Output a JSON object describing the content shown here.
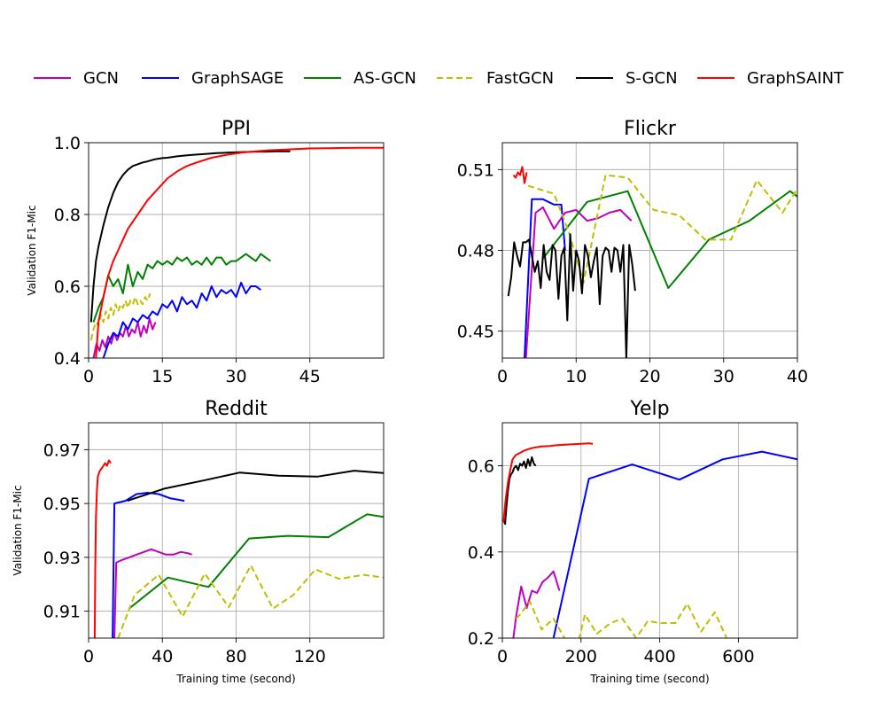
{
  "legend": {
    "placement": "top",
    "entries": [
      {
        "name": "GCN",
        "color": "#bf00bf",
        "dash": false
      },
      {
        "name": "GraphSAGE",
        "color": "#0000ff",
        "dash": false
      },
      {
        "name": "AS-GCN",
        "color": "#008000",
        "dash": false
      },
      {
        "name": "FastGCN",
        "color": "#bfbf00",
        "dash": true
      },
      {
        "name": "S-GCN",
        "color": "#000000",
        "dash": false
      },
      {
        "name": "GraphSAINT",
        "color": "#ff0000",
        "dash": false
      }
    ]
  },
  "chart_data": [
    {
      "type": "line",
      "title": "PPI",
      "xlabel": "",
      "ylabel": "Validation F1-Mic",
      "xlim": [
        0,
        60
      ],
      "ylim": [
        0.4,
        1.0
      ],
      "xticks": [
        0,
        15,
        30,
        45
      ],
      "yticks": [
        0.4,
        0.6,
        0.8,
        1.0
      ],
      "ytick_labels": [
        "0.4",
        "0.6",
        "0.8",
        "1.0"
      ],
      "grid": true,
      "series": [
        {
          "name": "GCN",
          "x": [
            1,
            1.6,
            2.2,
            2.8,
            3.4,
            4,
            4.6,
            5.2,
            5.8,
            6.4,
            7,
            7.6,
            8.2,
            8.8,
            9.4,
            10,
            10.6,
            11.2,
            11.8,
            12.4,
            13,
            13.6
          ],
          "y": [
            0.4,
            0.44,
            0.42,
            0.45,
            0.43,
            0.46,
            0.44,
            0.47,
            0.45,
            0.47,
            0.46,
            0.49,
            0.46,
            0.48,
            0.47,
            0.5,
            0.46,
            0.49,
            0.47,
            0.51,
            0.48,
            0.5
          ]
        },
        {
          "name": "GraphSAGE",
          "x": [
            3,
            3.5,
            4,
            5,
            6,
            7,
            8,
            9,
            10,
            11,
            12,
            13,
            14,
            15,
            16,
            17,
            18,
            19,
            20,
            21,
            22,
            23,
            24,
            25,
            26,
            27,
            28,
            29,
            30,
            31,
            32,
            33,
            34,
            35
          ],
          "y": [
            0.4,
            0.42,
            0.44,
            0.47,
            0.46,
            0.5,
            0.48,
            0.51,
            0.5,
            0.52,
            0.51,
            0.53,
            0.52,
            0.55,
            0.54,
            0.56,
            0.53,
            0.57,
            0.55,
            0.56,
            0.54,
            0.58,
            0.56,
            0.6,
            0.57,
            0.59,
            0.58,
            0.59,
            0.57,
            0.61,
            0.58,
            0.6,
            0.6,
            0.59
          ]
        },
        {
          "name": "AS-GCN",
          "x": [
            1,
            2,
            3,
            4,
            5,
            6,
            7,
            8,
            9,
            10,
            11,
            12,
            13,
            14,
            15,
            16,
            17,
            18,
            19,
            20,
            21,
            22,
            23,
            24,
            25,
            26,
            27,
            28,
            29,
            30,
            31,
            32,
            33,
            34,
            35,
            36,
            37
          ],
          "y": [
            0.5,
            0.54,
            0.57,
            0.63,
            0.6,
            0.62,
            0.58,
            0.66,
            0.6,
            0.64,
            0.62,
            0.66,
            0.65,
            0.67,
            0.66,
            0.67,
            0.66,
            0.68,
            0.67,
            0.68,
            0.66,
            0.67,
            0.66,
            0.68,
            0.66,
            0.68,
            0.68,
            0.66,
            0.67,
            0.67,
            0.68,
            0.69,
            0.68,
            0.67,
            0.69,
            0.68,
            0.67
          ]
        },
        {
          "name": "FastGCN",
          "x": [
            0.5,
            1,
            1.5,
            2,
            2.5,
            3,
            3.5,
            4,
            4.5,
            5,
            5.5,
            6,
            6.5,
            7,
            7.5,
            8,
            8.5,
            9,
            9.5,
            10,
            10.5,
            11,
            11.5,
            12,
            12.5
          ],
          "y": [
            0.45,
            0.48,
            0.5,
            0.49,
            0.52,
            0.5,
            0.53,
            0.51,
            0.54,
            0.52,
            0.55,
            0.53,
            0.55,
            0.54,
            0.56,
            0.54,
            0.56,
            0.55,
            0.57,
            0.55,
            0.56,
            0.55,
            0.57,
            0.56,
            0.58
          ]
        },
        {
          "name": "S-GCN",
          "x": [
            0.5,
            1,
            1.5,
            2,
            2.5,
            3,
            4,
            5,
            6,
            7,
            8,
            9,
            10,
            11,
            12,
            13,
            14,
            15,
            16,
            18,
            20,
            22,
            24,
            26,
            28,
            30,
            32,
            34,
            36,
            38,
            40,
            41
          ],
          "y": [
            0.5,
            0.6,
            0.67,
            0.71,
            0.74,
            0.77,
            0.82,
            0.86,
            0.89,
            0.91,
            0.925,
            0.935,
            0.94,
            0.945,
            0.948,
            0.952,
            0.955,
            0.957,
            0.958,
            0.962,
            0.965,
            0.967,
            0.969,
            0.971,
            0.972,
            0.973,
            0.974,
            0.975,
            0.975,
            0.976,
            0.976,
            0.976
          ]
        },
        {
          "name": "GraphSAINT",
          "x": [
            1.5,
            2,
            3,
            4,
            5,
            6,
            7,
            8,
            9,
            10,
            12,
            14,
            16,
            18,
            20,
            22,
            25,
            28,
            31,
            34,
            37,
            40,
            45,
            50,
            55,
            60
          ],
          "y": [
            0.4,
            0.5,
            0.57,
            0.63,
            0.67,
            0.7,
            0.73,
            0.76,
            0.78,
            0.8,
            0.84,
            0.87,
            0.9,
            0.92,
            0.935,
            0.945,
            0.958,
            0.966,
            0.972,
            0.976,
            0.979,
            0.981,
            0.984,
            0.985,
            0.986,
            0.986
          ]
        }
      ]
    },
    {
      "type": "line",
      "title": "Flickr",
      "xlabel": "",
      "ylabel": "",
      "xlim": [
        0,
        40
      ],
      "ylim": [
        0.44,
        0.52
      ],
      "xticks": [
        0,
        10,
        20,
        30,
        40
      ],
      "yticks": [
        0.45,
        0.48,
        0.51
      ],
      "ytick_labels": [
        "0.45",
        "0.48",
        "0.51"
      ],
      "grid": true,
      "series": [
        {
          "name": "GCN",
          "x": [
            3.2,
            4.5,
            5.5,
            7,
            8.5,
            10,
            11.5,
            13,
            14.5,
            16,
            17.5
          ],
          "y": [
            0.44,
            0.494,
            0.496,
            0.488,
            0.494,
            0.495,
            0.491,
            0.492,
            0.494,
            0.495,
            0.491
          ]
        },
        {
          "name": "GraphSAGE",
          "x": [
            3,
            4,
            5.5,
            7,
            8,
            8.5
          ],
          "y": [
            0.44,
            0.499,
            0.499,
            0.497,
            0.497,
            0.48
          ]
        },
        {
          "name": "AS-GCN",
          "x": [
            5.5,
            11.5,
            17,
            22.5,
            28,
            33.5,
            39,
            40
          ],
          "y": [
            0.477,
            0.498,
            0.502,
            0.466,
            0.484,
            0.491,
            0.502,
            0.5
          ]
        },
        {
          "name": "FastGCN",
          "x": [
            3.5,
            7,
            9,
            11,
            14,
            17,
            20.5,
            24,
            27.5,
            31,
            34.5,
            38,
            40
          ],
          "y": [
            0.504,
            0.501,
            0.487,
            0.468,
            0.508,
            0.507,
            0.495,
            0.493,
            0.484,
            0.484,
            0.506,
            0.494,
            0.503
          ]
        },
        {
          "name": "S-GCN",
          "x": [
            0.8,
            1.2,
            1.6,
            2,
            2.4,
            2.8,
            3.2,
            3.6,
            4,
            4.4,
            4.8,
            5.2,
            5.6,
            6,
            6.4,
            6.8,
            7.2,
            7.6,
            8,
            8.4,
            8.8,
            9.2,
            9.6,
            10,
            10.4,
            10.8,
            11.2,
            11.6,
            12,
            12.4,
            12.8,
            13.2,
            13.6,
            14,
            14.4,
            14.8,
            15.2,
            15.6,
            16,
            16.4,
            16.8,
            17.2,
            17.6,
            18
          ],
          "y": [
            0.463,
            0.47,
            0.483,
            0.478,
            0.474,
            0.483,
            0.483,
            0.484,
            0.478,
            0.472,
            0.476,
            0.466,
            0.482,
            0.472,
            0.469,
            0.482,
            0.48,
            0.462,
            0.478,
            0.481,
            0.454,
            0.486,
            0.465,
            0.48,
            0.476,
            0.464,
            0.482,
            0.478,
            0.47,
            0.476,
            0.481,
            0.46,
            0.478,
            0.481,
            0.48,
            0.472,
            0.481,
            0.48,
            0.472,
            0.482,
            0.44,
            0.482,
            0.475,
            0.465
          ]
        },
        {
          "name": "GraphSAINT",
          "x": [
            1.5,
            1.8,
            2.1,
            2.4,
            2.7,
            3,
            3.3
          ],
          "y": [
            0.508,
            0.507,
            0.509,
            0.508,
            0.511,
            0.505,
            0.509
          ]
        }
      ]
    },
    {
      "type": "line",
      "title": "Reddit",
      "xlabel": "Training time (second)",
      "ylabel": "Validation F1-Mic",
      "xlim": [
        0,
        160
      ],
      "ylim": [
        0.9,
        0.98
      ],
      "xticks": [
        0,
        40,
        80,
        120
      ],
      "yticks": [
        0.91,
        0.93,
        0.95,
        0.97
      ],
      "ytick_labels": [
        "0.91",
        "0.93",
        "0.95",
        "0.97"
      ],
      "grid": true,
      "series": [
        {
          "name": "GCN",
          "x": [
            14,
            15,
            18,
            22,
            26,
            30,
            34,
            38,
            42,
            46,
            50,
            54,
            56
          ],
          "y": [
            0.9,
            0.928,
            0.929,
            0.93,
            0.931,
            0.932,
            0.933,
            0.932,
            0.931,
            0.931,
            0.932,
            0.9315,
            0.931
          ]
        },
        {
          "name": "GraphSAGE",
          "x": [
            13,
            14,
            20,
            26,
            32,
            38,
            44,
            48,
            52
          ],
          "y": [
            0.9,
            0.95,
            0.951,
            0.9535,
            0.954,
            0.9535,
            0.952,
            0.9515,
            0.951
          ]
        },
        {
          "name": "AS-GCN",
          "x": [
            22,
            43,
            65,
            87,
            108,
            130,
            151,
            160
          ],
          "y": [
            0.911,
            0.9225,
            0.919,
            0.937,
            0.938,
            0.9375,
            0.946,
            0.945
          ]
        },
        {
          "name": "FastGCN",
          "x": [
            16,
            25,
            38,
            51,
            63,
            76,
            88,
            100,
            111,
            123,
            136,
            149,
            160
          ],
          "y": [
            0.9,
            0.916,
            0.9235,
            0.908,
            0.924,
            0.9115,
            0.927,
            0.911,
            0.916,
            0.9255,
            0.922,
            0.9235,
            0.9225
          ]
        },
        {
          "name": "S-GCN",
          "x": [
            21,
            41,
            62,
            82,
            103,
            124,
            144,
            160
          ],
          "y": [
            0.951,
            0.9555,
            0.9585,
            0.9615,
            0.9603,
            0.96,
            0.9622,
            0.9613
          ]
        },
        {
          "name": "GraphSAINT",
          "x": [
            3.3,
            3.6,
            4,
            4.5,
            5,
            6,
            7,
            8,
            9,
            10,
            11,
            12
          ],
          "y": [
            0.9,
            0.925,
            0.945,
            0.955,
            0.96,
            0.962,
            0.963,
            0.964,
            0.965,
            0.964,
            0.966,
            0.965
          ]
        }
      ]
    },
    {
      "type": "line",
      "title": "Yelp",
      "xlabel": "Training time (second)",
      "ylabel": "",
      "xlim": [
        0,
        750
      ],
      "ylim": [
        0.2,
        0.7
      ],
      "xticks": [
        0,
        200,
        400,
        600
      ],
      "yticks": [
        0.2,
        0.4,
        0.6
      ],
      "ytick_labels": [
        "0.2",
        "0.4",
        "0.6"
      ],
      "grid": true,
      "series": [
        {
          "name": "GCN",
          "x": [
            28,
            35,
            48,
            62,
            75,
            88,
            102,
            115,
            130,
            145
          ],
          "y": [
            0.2,
            0.25,
            0.32,
            0.27,
            0.31,
            0.305,
            0.33,
            0.34,
            0.355,
            0.31
          ]
        },
        {
          "name": "GraphSAGE",
          "x": [
            130,
            220,
            330,
            450,
            560,
            660,
            750
          ],
          "y": [
            0.2,
            0.57,
            0.603,
            0.568,
            0.615,
            0.633,
            0.615
          ]
        },
        {
          "name": "FastGCN",
          "x": [
            35,
            45,
            70,
            100,
            130,
            155,
            185,
            210,
            240,
            275,
            305,
            340,
            370,
            400,
            440,
            470,
            505,
            540,
            575,
            605,
            630
          ],
          "y": [
            0.245,
            0.255,
            0.285,
            0.22,
            0.245,
            0.205,
            0.16,
            0.255,
            0.21,
            0.235,
            0.245,
            0.2,
            0.24,
            0.235,
            0.235,
            0.28,
            0.215,
            0.26,
            0.19,
            0.16,
            0.16
          ]
        },
        {
          "name": "S-GCN",
          "x": [
            3,
            7,
            10,
            14,
            18,
            22,
            26,
            30,
            35,
            40,
            45,
            50,
            55,
            60,
            65,
            70,
            75,
            80,
            85
          ],
          "y": [
            0.475,
            0.465,
            0.5,
            0.54,
            0.57,
            0.58,
            0.585,
            0.595,
            0.6,
            0.59,
            0.605,
            0.6,
            0.61,
            0.595,
            0.615,
            0.6,
            0.62,
            0.605,
            0.6
          ]
        },
        {
          "name": "GraphSAINT",
          "x": [
            3,
            8,
            14,
            20,
            26,
            34,
            45,
            55,
            70,
            85,
            100,
            120,
            140,
            160,
            180,
            200,
            220,
            230
          ],
          "y": [
            0.47,
            0.52,
            0.56,
            0.59,
            0.615,
            0.625,
            0.63,
            0.635,
            0.64,
            0.643,
            0.645,
            0.646,
            0.648,
            0.649,
            0.65,
            0.651,
            0.652,
            0.651
          ]
        }
      ]
    }
  ]
}
